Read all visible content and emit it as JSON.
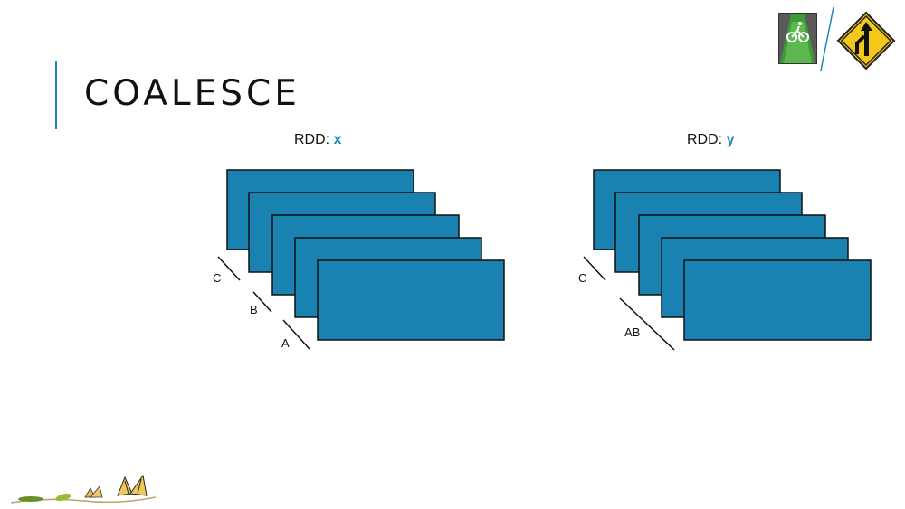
{
  "slide": {
    "title": "COALESCE"
  },
  "rdd_x": {
    "label_prefix": "RDD:",
    "name": "x",
    "partitions": 5,
    "group_labels": [
      "C",
      "B",
      "A"
    ]
  },
  "rdd_y": {
    "label_prefix": "RDD:",
    "name": "y",
    "partitions": 5,
    "group_labels": [
      "C",
      "AB"
    ]
  },
  "colors": {
    "partition_fill": "#1a82b0",
    "accent": "#1f8ab8",
    "text": "#111111"
  },
  "icons": [
    "bike-lane-icon",
    "merge-sign-icon",
    "butterfly-lifecycle-icon"
  ]
}
